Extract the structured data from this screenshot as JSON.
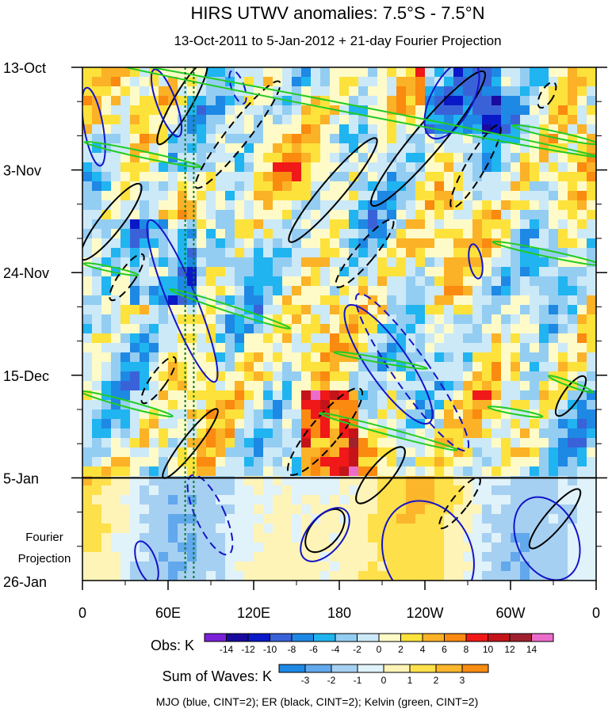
{
  "chart_data": {
    "type": "heatmap",
    "title": "HIRS UTWV anomalies: 7.5°S - 7.5°N",
    "subtitle": "13-Oct-2011 to 5-Jan-2012 + 21-day Fourier Projection",
    "x_ticks": [
      "0",
      "60E",
      "120E",
      "180",
      "120W",
      "60W",
      "0"
    ],
    "x_tick_lon": [
      0,
      60,
      120,
      180,
      240,
      300,
      360
    ],
    "y_ticks": [
      "13-Oct",
      "3-Nov",
      "24-Nov",
      "15-Dec",
      "5-Jan"
    ],
    "y_tick_day": [
      0,
      21,
      42,
      63,
      84
    ],
    "y_range_days": [
      0,
      105
    ],
    "projection_start_day": 84,
    "projection_label_1": "Fourier",
    "projection_label_2": "Projection",
    "projection_end_label": "26-Jan",
    "reference_lines_lon": [
      72,
      78
    ],
    "obs_legend": {
      "label": "Obs: K",
      "levels": [
        "-14",
        "-12",
        "-10",
        "-8",
        "-6",
        "-4",
        "-2",
        "0",
        "2",
        "4",
        "6",
        "8",
        "10",
        "12",
        "14"
      ],
      "colors": [
        "#7c20d8",
        "#1a0a9e",
        "#0a19c8",
        "#3a62d8",
        "#1e88e5",
        "#20b4f0",
        "#94cdf2",
        "#cce9f8",
        "#fffbc8",
        "#fde23c",
        "#fbb226",
        "#fa8a10",
        "#f01818",
        "#c4141a",
        "#a02030",
        "#ec6ccc"
      ]
    },
    "waves_legend": {
      "label": "Sum of Waves: K",
      "levels": [
        "-3",
        "-2",
        "-1",
        "0",
        "1",
        "2",
        "3"
      ],
      "colors": [
        "#1e88e5",
        "#62a8ec",
        "#a6d0f2",
        "#e0f2fa",
        "#fff4b8",
        "#fde04a",
        "#fbb62c",
        "#f98c12"
      ]
    },
    "contour_legend": "MJO (blue, CINT=2); ER (black, CINT=2); Kelvin (green, CINT=2)",
    "series_colors": {
      "MJO": "#1414c8",
      "ER": "#000000",
      "Kelvin": "#22cc22"
    }
  }
}
